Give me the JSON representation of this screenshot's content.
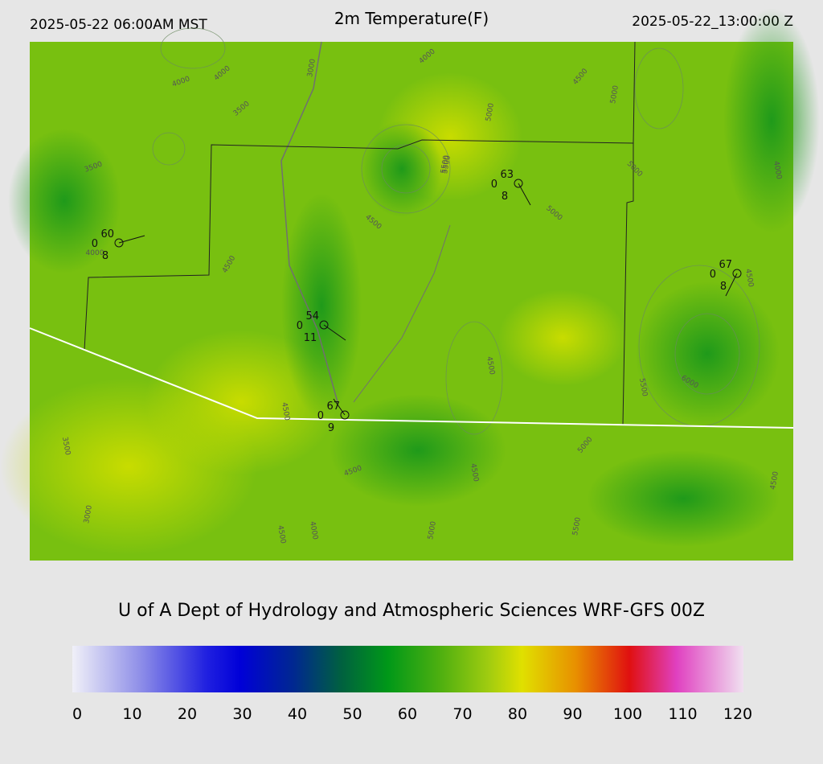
{
  "header": {
    "left": "2025-05-22 06:00AM MST",
    "title": "2m Temperature(F)",
    "right": "2025-05-22_13:00:00 Z"
  },
  "map": {
    "contour_labels": [
      "4000",
      "4000",
      "3500",
      "3000",
      "3500",
      "4000",
      "4000",
      "4500",
      "4500",
      "5500",
      "5000",
      "4500",
      "5000",
      "5000",
      "5000",
      "4000",
      "4500",
      "4500",
      "5500",
      "5500",
      "6000",
      "5000",
      "4500",
      "3500",
      "3000",
      "4500",
      "4500",
      "4000",
      "5000",
      "5500",
      "4500",
      "4500"
    ],
    "stations": [
      {
        "temp": 60,
        "left": 0,
        "bottom": 8
      },
      {
        "temp": 54,
        "left": 0,
        "bottom": 11
      },
      {
        "temp": 67,
        "left": 0,
        "bottom": 9
      },
      {
        "temp": 63,
        "left": 0,
        "bottom": 8
      },
      {
        "temp": 67,
        "left": 0,
        "bottom": 8
      }
    ]
  },
  "footer": {
    "credit": "U of A Dept of Hydrology and Atmospheric Sciences WRF-GFS 00Z"
  },
  "colorbar": {
    "range": [
      0,
      120
    ],
    "ticks": [
      0,
      10,
      20,
      30,
      40,
      50,
      60,
      70,
      80,
      90,
      100,
      110,
      120
    ]
  }
}
